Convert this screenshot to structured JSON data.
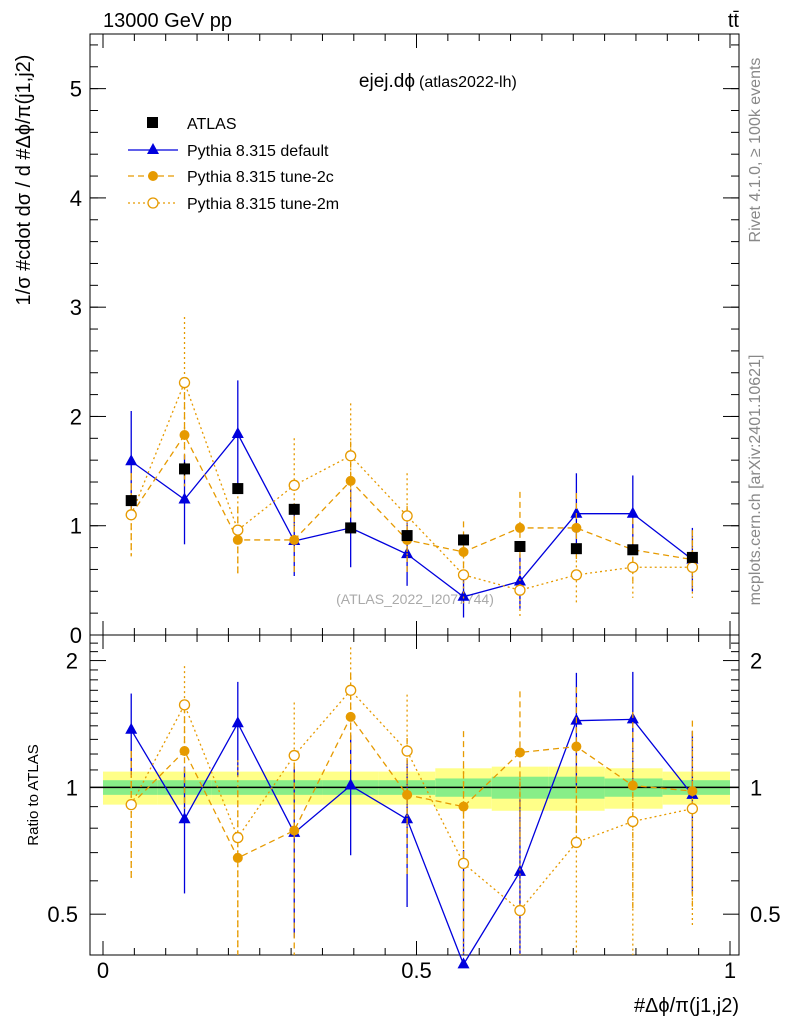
{
  "header": {
    "energy_label": "13000 GeV pp",
    "process_label": "tt̄",
    "analysis_title": "ejej.dϕ",
    "analysis_tag": "(atlas2022-lh)",
    "side_label_rivet": "Rivet 4.1.0, ≥ 100k events",
    "side_label_site": "mcplots.cern.ch [arXiv:2401.10621]",
    "watermark": "(ATLAS_2022_I2077744)"
  },
  "colors": {
    "data": "#000000",
    "default": "#0000dd",
    "tune2c": "#e69a00",
    "tune2m": "#e69a00",
    "band_inner": "#88ee88",
    "band_outer": "#ffff88"
  },
  "chart_data": [
    {
      "type": "line",
      "title": "ejej.dϕ (atlas2022-lh)",
      "xlabel": "#Δϕ/π(j1,j2)",
      "ylabel": "1/σ #cdot dσ / d #Δϕ/π(j1,j2)",
      "xlim": [
        0,
        1
      ],
      "ylim": [
        0,
        5.5
      ],
      "yticks": [
        0,
        1,
        2,
        3,
        4,
        5
      ],
      "legend_position": "top-left",
      "x": [
        0.045,
        0.13,
        0.215,
        0.305,
        0.395,
        0.485,
        0.575,
        0.665,
        0.755,
        0.845,
        0.94
      ],
      "series": [
        {
          "name": "ATLAS",
          "marker": "square",
          "values": [
            1.23,
            1.52,
            1.34,
            1.15,
            0.98,
            0.91,
            0.87,
            0.81,
            0.79,
            0.78,
            0.71
          ],
          "errors": [
            0.05,
            0.06,
            0.05,
            0.05,
            0.04,
            0.04,
            0.04,
            0.04,
            0.04,
            0.03,
            0.03
          ]
        },
        {
          "name": "Pythia 8.315 default",
          "marker": "triangle",
          "values": [
            1.59,
            1.24,
            1.84,
            0.86,
            0.98,
            0.74,
            0.35,
            0.49,
            1.11,
            1.11,
            0.69
          ],
          "errors": [
            0.46,
            0.41,
            0.49,
            0.32,
            0.36,
            0.29,
            0.19,
            0.25,
            0.37,
            0.35,
            0.29
          ]
        },
        {
          "name": "Pythia 8.315 tune-2c",
          "marker": "circle",
          "values": [
            1.1,
            1.83,
            0.87,
            0.87,
            1.41,
            0.87,
            0.76,
            0.98,
            0.98,
            0.78,
            0.69
          ],
          "errors": [
            0.38,
            0.47,
            0.3,
            0.31,
            0.36,
            0.31,
            0.28,
            0.33,
            0.32,
            0.29,
            0.27
          ]
        },
        {
          "name": "Pythia 8.315 tune-2m",
          "marker": "open-circle",
          "values": [
            1.1,
            2.31,
            0.96,
            1.37,
            1.64,
            1.09,
            0.55,
            0.41,
            0.55,
            0.62,
            0.62
          ],
          "errors": [
            0.38,
            0.6,
            0.4,
            0.43,
            0.48,
            0.39,
            0.26,
            0.24,
            0.27,
            0.28,
            0.28
          ]
        }
      ]
    },
    {
      "type": "line",
      "title": "Ratio to ATLAS",
      "xlabel": "#Δϕ/π(j1,j2)",
      "ylabel": "Ratio to ATLAS",
      "xlim": [
        0,
        1
      ],
      "ylim": [
        0.4,
        2.3
      ],
      "yticks": [
        0.5,
        1,
        2
      ],
      "xticks": [
        0,
        0.5,
        1
      ],
      "x": [
        0.045,
        0.13,
        0.215,
        0.305,
        0.395,
        0.485,
        0.575,
        0.665,
        0.755,
        0.845,
        0.94
      ],
      "band_inner": [
        0.04,
        0.04,
        0.04,
        0.04,
        0.04,
        0.04,
        0.05,
        0.06,
        0.06,
        0.05,
        0.04
      ],
      "band_outer": [
        0.09,
        0.09,
        0.09,
        0.09,
        0.09,
        0.09,
        0.11,
        0.12,
        0.12,
        0.11,
        0.09
      ],
      "series": [
        {
          "name": "Pythia 8.315 default",
          "values": [
            1.37,
            0.84,
            1.42,
            0.78,
            1.01,
            0.84,
            0.38,
            0.63,
            1.44,
            1.45,
            0.96
          ],
          "errors": [
            0.3,
            0.28,
            0.36,
            0.34,
            0.32,
            0.32,
            0.33,
            0.31,
            0.43,
            0.43,
            0.4
          ]
        },
        {
          "name": "Pythia 8.315 tune-2c",
          "values": [
            0.91,
            1.22,
            0.68,
            0.79,
            1.47,
            0.96,
            0.9,
            1.21,
            1.25,
            1.01,
            0.98
          ],
          "errors": [
            0.31,
            0.33,
            0.3,
            0.42,
            0.39,
            0.35,
            0.46,
            0.48,
            0.48,
            0.5,
            0.46
          ]
        },
        {
          "name": "Pythia 8.315 tune-2m",
          "values": [
            0.91,
            1.57,
            0.76,
            1.19,
            1.7,
            1.22,
            0.66,
            0.51,
            0.74,
            0.83,
            0.89
          ],
          "errors": [
            0.31,
            0.37,
            0.4,
            0.4,
            0.45,
            0.44,
            0.46,
            0.54,
            0.45,
            0.44,
            0.42
          ]
        }
      ]
    }
  ]
}
